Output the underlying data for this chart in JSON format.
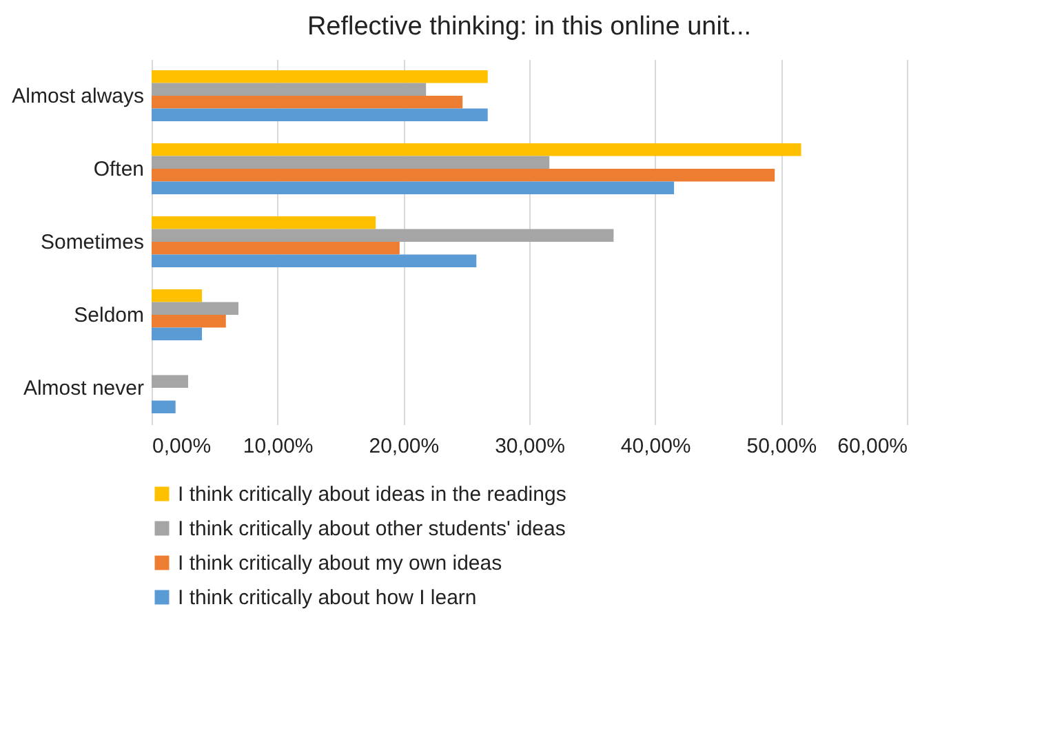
{
  "chart_data": {
    "type": "bar",
    "orientation": "horizontal",
    "title": "Reflective thinking: in this online unit...",
    "categories": [
      "Almost always",
      "Often",
      "Sometimes",
      "Seldom",
      "Almost never"
    ],
    "series": [
      {
        "name": "I think critically about ideas in the readings",
        "color": "#ffc000",
        "values": [
          26.7,
          51.6,
          17.8,
          4.0,
          0
        ]
      },
      {
        "name": "I think critically about other students' ideas",
        "color": "#a5a5a5",
        "values": [
          21.8,
          31.6,
          36.7,
          6.9,
          2.9
        ]
      },
      {
        "name": "I think critically about my own ideas",
        "color": "#ed7d31",
        "values": [
          24.7,
          49.5,
          19.7,
          5.9,
          0
        ]
      },
      {
        "name": "I think critically about how I learn",
        "color": "#5b9bd5",
        "values": [
          26.7,
          41.5,
          25.8,
          4.0,
          1.9
        ]
      }
    ],
    "xlim": [
      0,
      60
    ],
    "xticks": [
      {
        "value": 0,
        "label": "0,00%"
      },
      {
        "value": 10,
        "label": "10,00%"
      },
      {
        "value": 20,
        "label": "20,00%"
      },
      {
        "value": 30,
        "label": "30,00%"
      },
      {
        "value": 40,
        "label": "40,00%"
      },
      {
        "value": 50,
        "label": "50,00%"
      },
      {
        "value": 60,
        "label": "60,00%"
      }
    ],
    "grid": "x",
    "legend": "bottom"
  }
}
